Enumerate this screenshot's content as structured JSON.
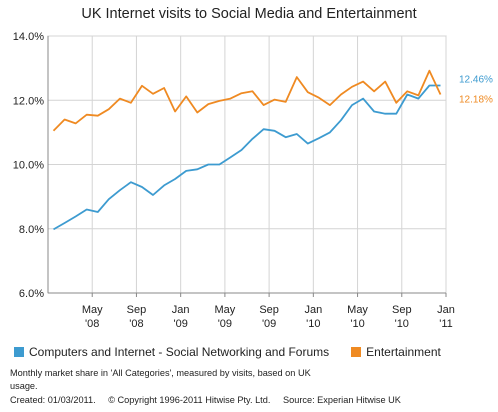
{
  "title": "UK Internet visits to Social Media and Entertainment",
  "notes": "Monthly market share in 'All Categories', measured by visits, based on UK usage.",
  "created": "Created: 01/03/2011.",
  "copyright": "© Copyright 1996-2011 Hitwise Pty. Ltd.",
  "source": "Source: Experian Hitwise UK",
  "colors": {
    "series1": "#3d9bd0",
    "series2": "#ef8a22",
    "grid": "#d4d4d4",
    "axis": "#888888"
  },
  "chart_data": {
    "type": "line",
    "title": "UK Internet visits to Social Media and Entertainment",
    "xlabel": "",
    "ylabel": "",
    "ylim": [
      6.0,
      14.0
    ],
    "yticks": [
      "6.0%",
      "8.0%",
      "10.0%",
      "12.0%",
      "14.0%"
    ],
    "xticks": [
      {
        "top": "May",
        "bottom": "'08",
        "index": 4
      },
      {
        "top": "Sep",
        "bottom": "'08",
        "index": 8
      },
      {
        "top": "Jan",
        "bottom": "'09",
        "index": 12
      },
      {
        "top": "May",
        "bottom": "'09",
        "index": 16
      },
      {
        "top": "Sep",
        "bottom": "'09",
        "index": 20
      },
      {
        "top": "Jan",
        "bottom": "'10",
        "index": 24
      },
      {
        "top": "May",
        "bottom": "'10",
        "index": 28
      },
      {
        "top": "Sep",
        "bottom": "'10",
        "index": 32
      },
      {
        "top": "Jan",
        "bottom": "'11",
        "index": 36
      }
    ],
    "x_index_range": [
      0,
      36
    ],
    "grid": true,
    "legend_position": "bottom",
    "series": [
      {
        "name": "Computers and Internet - Social Networking and Forums",
        "end_label": "12.46%",
        "values": [
          7.98,
          8.18,
          8.38,
          8.6,
          8.52,
          8.92,
          9.2,
          9.45,
          9.3,
          9.05,
          9.35,
          9.55,
          9.8,
          9.85,
          10.0,
          10.0,
          10.22,
          10.45,
          10.8,
          11.1,
          11.05,
          10.85,
          10.95,
          10.65,
          10.82,
          11.0,
          11.38,
          11.85,
          12.05,
          11.65,
          11.58,
          11.58,
          12.18,
          12.05,
          12.46,
          12.46
        ]
      },
      {
        "name": "Entertainment",
        "end_label": "12.18%",
        "values": [
          11.05,
          11.4,
          11.28,
          11.55,
          11.52,
          11.72,
          12.05,
          11.92,
          12.45,
          12.2,
          12.38,
          11.65,
          12.12,
          11.62,
          11.88,
          11.98,
          12.05,
          12.22,
          12.28,
          11.85,
          12.02,
          11.95,
          12.72,
          12.25,
          12.08,
          11.85,
          12.18,
          12.42,
          12.58,
          12.28,
          12.58,
          11.92,
          12.28,
          12.15,
          12.92,
          12.18
        ]
      }
    ]
  }
}
